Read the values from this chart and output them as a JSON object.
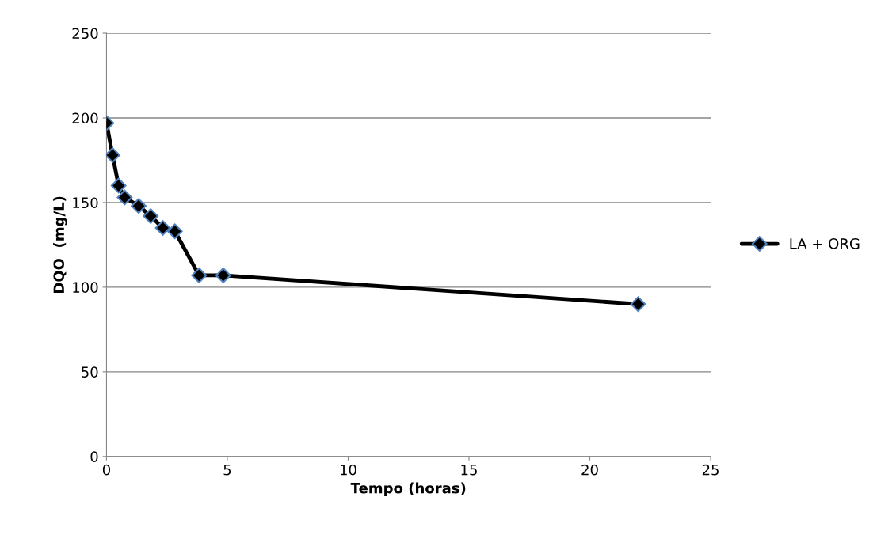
{
  "chart_data": {
    "type": "line",
    "xlabel": "Tempo (horas)",
    "ylabel": "DQO  (mg/L)",
    "x": [
      0,
      0.25,
      0.5,
      0.75,
      1.33,
      1.83,
      2.33,
      2.83,
      3.83,
      4.83,
      22
    ],
    "series": [
      {
        "name": "LA + ORG",
        "color": "#000000",
        "values": [
          197,
          178,
          160,
          153,
          148,
          142,
          135,
          133,
          107,
          107,
          90
        ]
      }
    ],
    "marker": "diamond",
    "line_style": "solid",
    "xlim": [
      0,
      25
    ],
    "xticks": [
      0,
      5,
      10,
      15,
      20,
      25
    ],
    "ylim": [
      0,
      250
    ],
    "yticks": [
      0,
      50,
      100,
      150,
      200,
      250
    ],
    "grid": "y",
    "legend": "right"
  }
}
